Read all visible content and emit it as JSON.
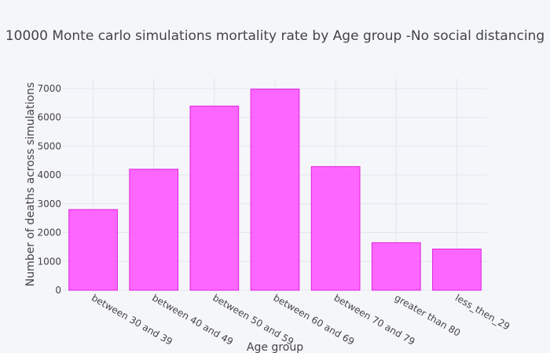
{
  "chart_data": {
    "type": "bar",
    "title": "10000 Monte carlo simulations mortality rate by Age group -No social distancing",
    "xlabel": "Age group",
    "ylabel": "Number of deaths across simulations",
    "categories": [
      "between 30 and 39",
      "between 40 and 49",
      "between 50 and 59",
      "between 60 and 69",
      "between 70 and 79",
      "greater than 80",
      "less_then_29"
    ],
    "values": [
      2800,
      4200,
      6390,
      6980,
      4290,
      1650,
      1430
    ],
    "ylim": [
      0,
      7350
    ],
    "yticks": [
      0,
      1000,
      2000,
      3000,
      4000,
      5000,
      6000,
      7000
    ],
    "grid": true,
    "legend": "none",
    "bar_color": "#ff4dff",
    "bar_border_color": "#e020e0"
  }
}
